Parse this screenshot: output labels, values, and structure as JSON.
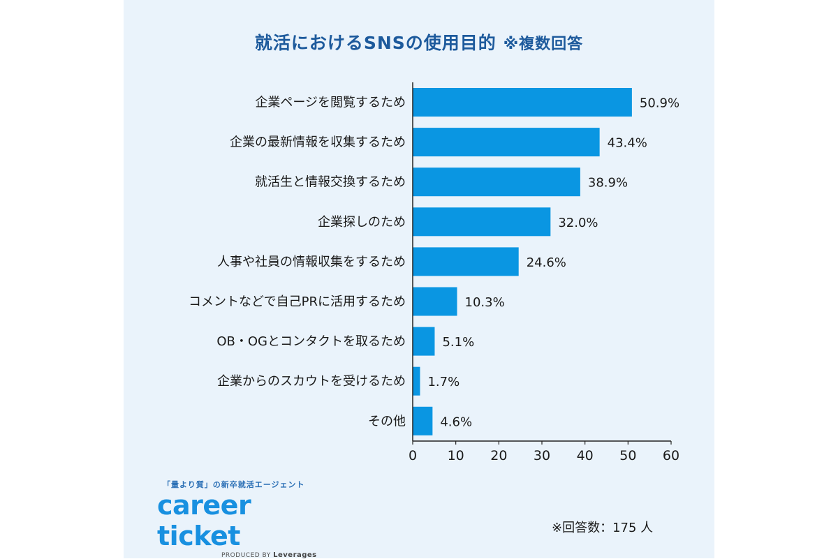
{
  "header": {
    "title": "就活におけるSNSの使用目的",
    "note": "※複数回答"
  },
  "colors": {
    "bar": "#0a96e2",
    "title": "#1d5a9c",
    "panel": "#eaf3fb"
  },
  "chart_data": {
    "type": "bar",
    "orientation": "horizontal",
    "categories": [
      "企業ページを閲覧するため",
      "企業の最新情報を収集するため",
      "就活生と情報交換するため",
      "企業探しのため",
      "人事や社員の情報収集をするため",
      "コメントなどで自己PRに活用するため",
      "OB・OGとコンタクトを取るため",
      "企業からのスカウトを受けるため",
      "その他"
    ],
    "values": [
      50.9,
      43.4,
      38.9,
      32.0,
      24.6,
      10.3,
      5.1,
      1.7,
      4.6
    ],
    "value_labels": [
      "50.9%",
      "43.4%",
      "38.9%",
      "32.0%",
      "24.6%",
      "10.3%",
      "5.1%",
      "1.7%",
      "4.6%"
    ],
    "xlim": [
      0,
      60
    ],
    "xticks": [
      0,
      10,
      20,
      30,
      40,
      50,
      60
    ],
    "grid": false
  },
  "brand": {
    "tagline": "「量より質」の新卒就活エージェント",
    "logo": "career ticket",
    "produced_by": "PRODUCED BY",
    "company": "Leverages"
  },
  "footer": {
    "respondents": "※回答数：175 人"
  }
}
